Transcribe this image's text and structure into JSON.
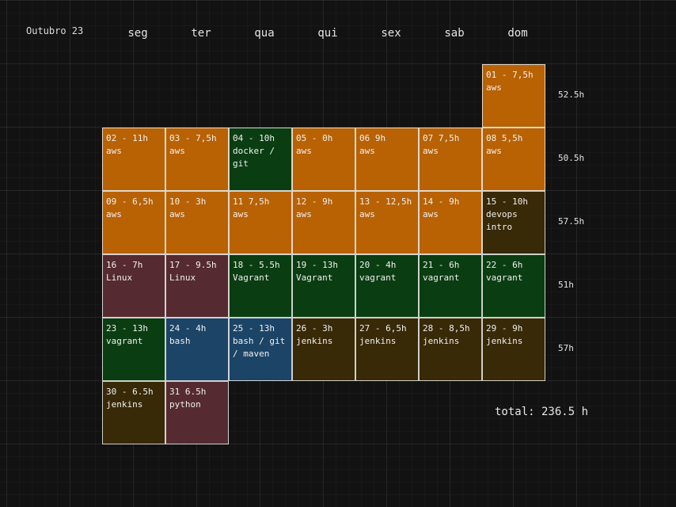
{
  "title": "Outubro 23",
  "weekdays": [
    "seg",
    "ter",
    "qua",
    "qui",
    "sex",
    "sab",
    "dom"
  ],
  "colors": {
    "aws": "#b86204",
    "docker": "#0b3d12",
    "devops": "#382907",
    "linux": "#552a30",
    "vagrant": "#0b3d12",
    "bash": "#1c4466",
    "jenkins": "#382907",
    "python": "#552a30"
  },
  "weeks": [
    {
      "total": "52.5h",
      "days": [
        null,
        null,
        null,
        null,
        null,
        null,
        {
          "lines": [
            "01 - 7,5h",
            "aws"
          ],
          "color": "#b86204"
        }
      ]
    },
    {
      "total": "50.5h",
      "days": [
        {
          "lines": [
            "02 - 11h",
            "aws"
          ],
          "color": "#b86204"
        },
        {
          "lines": [
            "03 - 7,5h",
            "aws"
          ],
          "color": "#b86204"
        },
        {
          "lines": [
            "04 - 10h",
            "docker / git"
          ],
          "color": "#0b3d12"
        },
        {
          "lines": [
            "05 - 0h",
            "aws"
          ],
          "color": "#b86204"
        },
        {
          "lines": [
            "06 9h",
            "aws"
          ],
          "color": "#b86204"
        },
        {
          "lines": [
            "07 7,5h",
            "aws"
          ],
          "color": "#b86204"
        },
        {
          "lines": [
            "08 5,5h",
            "aws"
          ],
          "color": "#b86204"
        }
      ]
    },
    {
      "total": "57.5h",
      "days": [
        {
          "lines": [
            "09 - 6,5h",
            "aws"
          ],
          "color": "#b86204"
        },
        {
          "lines": [
            "10 - 3h",
            "aws"
          ],
          "color": "#b86204"
        },
        {
          "lines": [
            "11 7,5h",
            "aws"
          ],
          "color": "#b86204"
        },
        {
          "lines": [
            "12 - 9h",
            "aws"
          ],
          "color": "#b86204"
        },
        {
          "lines": [
            "13 - 12,5h",
            "aws"
          ],
          "color": "#b86204"
        },
        {
          "lines": [
            "14 - 9h",
            "aws"
          ],
          "color": "#b86204"
        },
        {
          "lines": [
            "15 - 10h",
            "devops intro"
          ],
          "color": "#382907"
        }
      ]
    },
    {
      "total": "51h",
      "days": [
        {
          "lines": [
            "16 - 7h",
            "Linux"
          ],
          "color": "#552a30"
        },
        {
          "lines": [
            "17 - 9.5h",
            "Linux"
          ],
          "color": "#552a30"
        },
        {
          "lines": [
            "18 - 5.5h",
            "Vagrant"
          ],
          "color": "#0b3d12"
        },
        {
          "lines": [
            "19 - 13h",
            "Vagrant"
          ],
          "color": "#0b3d12"
        },
        {
          "lines": [
            "20 - 4h",
            "vagrant"
          ],
          "color": "#0b3d12"
        },
        {
          "lines": [
            "21 - 6h",
            "vagrant"
          ],
          "color": "#0b3d12"
        },
        {
          "lines": [
            "22 - 6h",
            "vagrant"
          ],
          "color": "#0b3d12"
        }
      ]
    },
    {
      "total": "57h",
      "days": [
        {
          "lines": [
            "23 - 13h",
            "vagrant"
          ],
          "color": "#0b3d12"
        },
        {
          "lines": [
            "24 - 4h",
            "bash"
          ],
          "color": "#1c4466"
        },
        {
          "lines": [
            "25 - 13h",
            "bash / git / maven"
          ],
          "color": "#1c4466"
        },
        {
          "lines": [
            "26 - 3h",
            "jenkins"
          ],
          "color": "#382907"
        },
        {
          "lines": [
            "27 - 6,5h",
            "jenkins"
          ],
          "color": "#382907"
        },
        {
          "lines": [
            "28 - 8,5h",
            "jenkins"
          ],
          "color": "#382907"
        },
        {
          "lines": [
            "29 - 9h",
            "jenkins"
          ],
          "color": "#382907"
        }
      ]
    },
    {
      "total": "",
      "days": [
        {
          "lines": [
            "30 - 6.5h",
            "jenkins"
          ],
          "color": "#382907"
        },
        {
          "lines": [
            "31 6.5h",
            "python"
          ],
          "color": "#552a30"
        },
        null,
        null,
        null,
        null,
        null
      ]
    }
  ],
  "grand_total": "total: 236.5 h"
}
